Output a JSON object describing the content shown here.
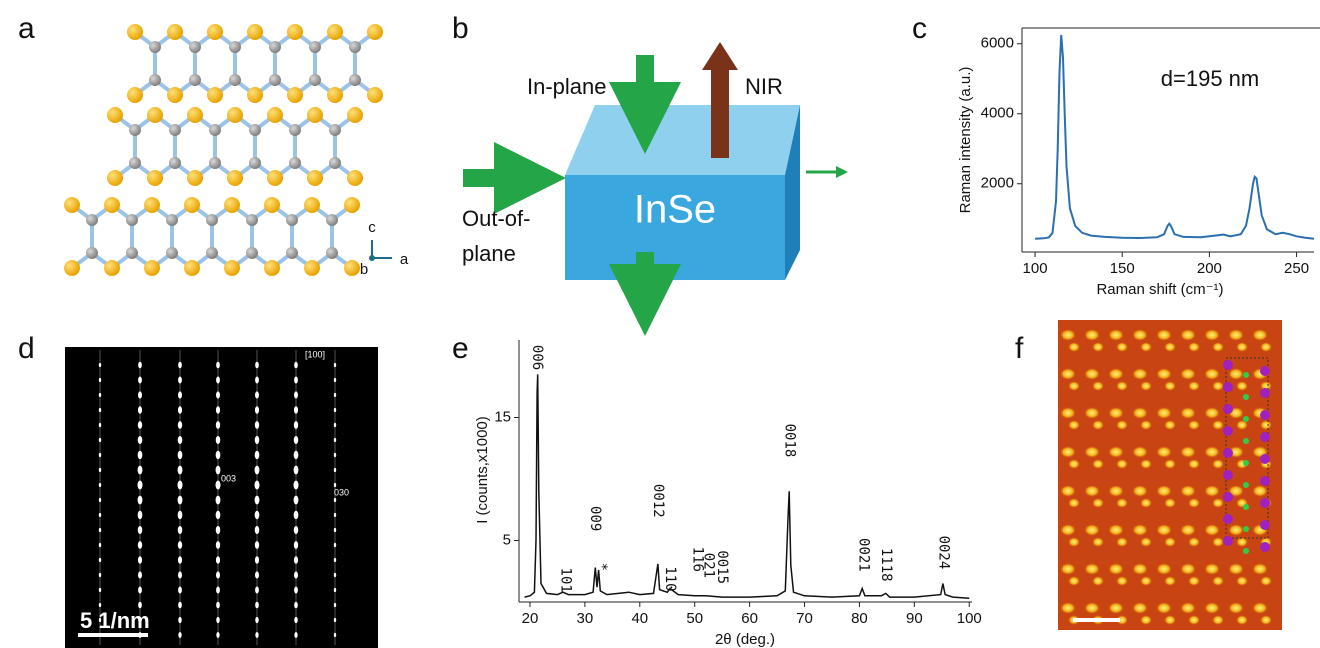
{
  "panel_labels": [
    "a",
    "b",
    "c",
    "d",
    "e",
    "f"
  ],
  "panel_a": {
    "axis_labels": [
      "c",
      "b",
      "a"
    ]
  },
  "panel_b": {
    "material": "InSe",
    "in_plane": "In-plane",
    "emission": "NIR",
    "out_of_plane": [
      "Out-of-",
      "plane"
    ]
  },
  "panel_d": {
    "zone_axis": "[100]",
    "spots": [
      "003",
      "030"
    ],
    "scale_bar": "5 1/nm"
  },
  "chart_data": [
    {
      "type": "line",
      "annotation": "d=195 nm",
      "xlabel": "Raman shift (cm⁻¹)",
      "ylabel": "Raman intensity (a.u.)",
      "color": "#2a6fb0",
      "x": [
        100,
        105,
        108,
        110,
        112,
        113,
        114,
        115,
        116,
        117,
        118,
        120,
        123,
        127,
        132,
        140,
        150,
        160,
        170,
        174,
        176,
        177,
        178,
        180,
        185,
        195,
        205,
        208,
        212,
        218,
        221,
        223,
        225,
        226,
        227,
        228,
        230,
        233,
        238,
        242,
        246,
        250,
        255,
        260
      ],
      "values": [
        430,
        440,
        470,
        600,
        1500,
        3000,
        5200,
        6250,
        5600,
        4000,
        2500,
        1300,
        800,
        600,
        520,
        480,
        460,
        450,
        470,
        560,
        800,
        860,
        780,
        560,
        480,
        470,
        530,
        550,
        500,
        560,
        800,
        1300,
        2000,
        2200,
        2150,
        1800,
        1100,
        700,
        560,
        600,
        560,
        500,
        460,
        430
      ],
      "xlim": [
        92.5,
        260
      ],
      "ylim": [
        50,
        6450
      ],
      "xticks": [
        100,
        150,
        200,
        250
      ],
      "yticks": [
        2000,
        4000,
        6000
      ]
    },
    {
      "type": "line",
      "xlabel": "2θ (deg.)",
      "ylabel": "I (counts,x1000)",
      "color": "#111111",
      "x": [
        19,
        20,
        20.8,
        21.1,
        21.3,
        21.4,
        21.6,
        22,
        23,
        25,
        26,
        27,
        30,
        31.5,
        31.9,
        32.2,
        32.5,
        32.8,
        34,
        38,
        40,
        42.5,
        43.1,
        43.3,
        43.6,
        45,
        45.5,
        47,
        50,
        52,
        55,
        60,
        65,
        66.5,
        67,
        67.2,
        67.5,
        68,
        70,
        75,
        80,
        80.5,
        81,
        84,
        84.8,
        85.5,
        90,
        94.8,
        95.2,
        95.6,
        97,
        100
      ],
      "values": [
        0.4,
        0.5,
        0.8,
        5,
        17,
        18.5,
        9,
        1.5,
        0.7,
        0.6,
        0.8,
        0.6,
        0.6,
        0.8,
        2.8,
        1.2,
        2.6,
        0.9,
        0.6,
        0.8,
        0.6,
        0.7,
        2.5,
        3.1,
        1,
        0.8,
        1.1,
        0.6,
        0.5,
        0.5,
        0.4,
        0.4,
        0.5,
        0.9,
        7,
        9,
        3,
        0.8,
        0.5,
        0.4,
        0.5,
        1.1,
        0.5,
        0.5,
        0.7,
        0.4,
        0.4,
        0.6,
        1.5,
        0.6,
        0.4,
        0.3
      ],
      "xlim": [
        18,
        100.5
      ],
      "ylim": [
        0,
        21.3
      ],
      "xticks": [
        20,
        30,
        40,
        50,
        60,
        70,
        80,
        90,
        100
      ],
      "yticks": [
        5,
        15
      ],
      "annotations": [
        {
          "text": "006",
          "x": 21.3,
          "y": 20.9
        },
        {
          "text": "101",
          "x": 26.5,
          "y": 2.8
        },
        {
          "text": "009",
          "x": 31.8,
          "y": 7.8
        },
        {
          "text": "*",
          "x": 33,
          "y": 3.2
        },
        {
          "text": "0012",
          "x": 43.3,
          "y": 9.6
        },
        {
          "text": "110",
          "x": 45.5,
          "y": 2.9
        },
        {
          "text": "116",
          "x": 50.5,
          "y": 4.5
        },
        {
          "text": "021",
          "x": 52.5,
          "y": 4.0
        },
        {
          "text": "0015",
          "x": 55,
          "y": 4.2
        },
        {
          "text": "0018",
          "x": 67.3,
          "y": 14.5
        },
        {
          "text": "0021",
          "x": 80.7,
          "y": 5.2
        },
        {
          "text": "1118",
          "x": 84.8,
          "y": 4.4
        },
        {
          "text": "0024",
          "x": 95.3,
          "y": 5.4
        }
      ]
    }
  ]
}
